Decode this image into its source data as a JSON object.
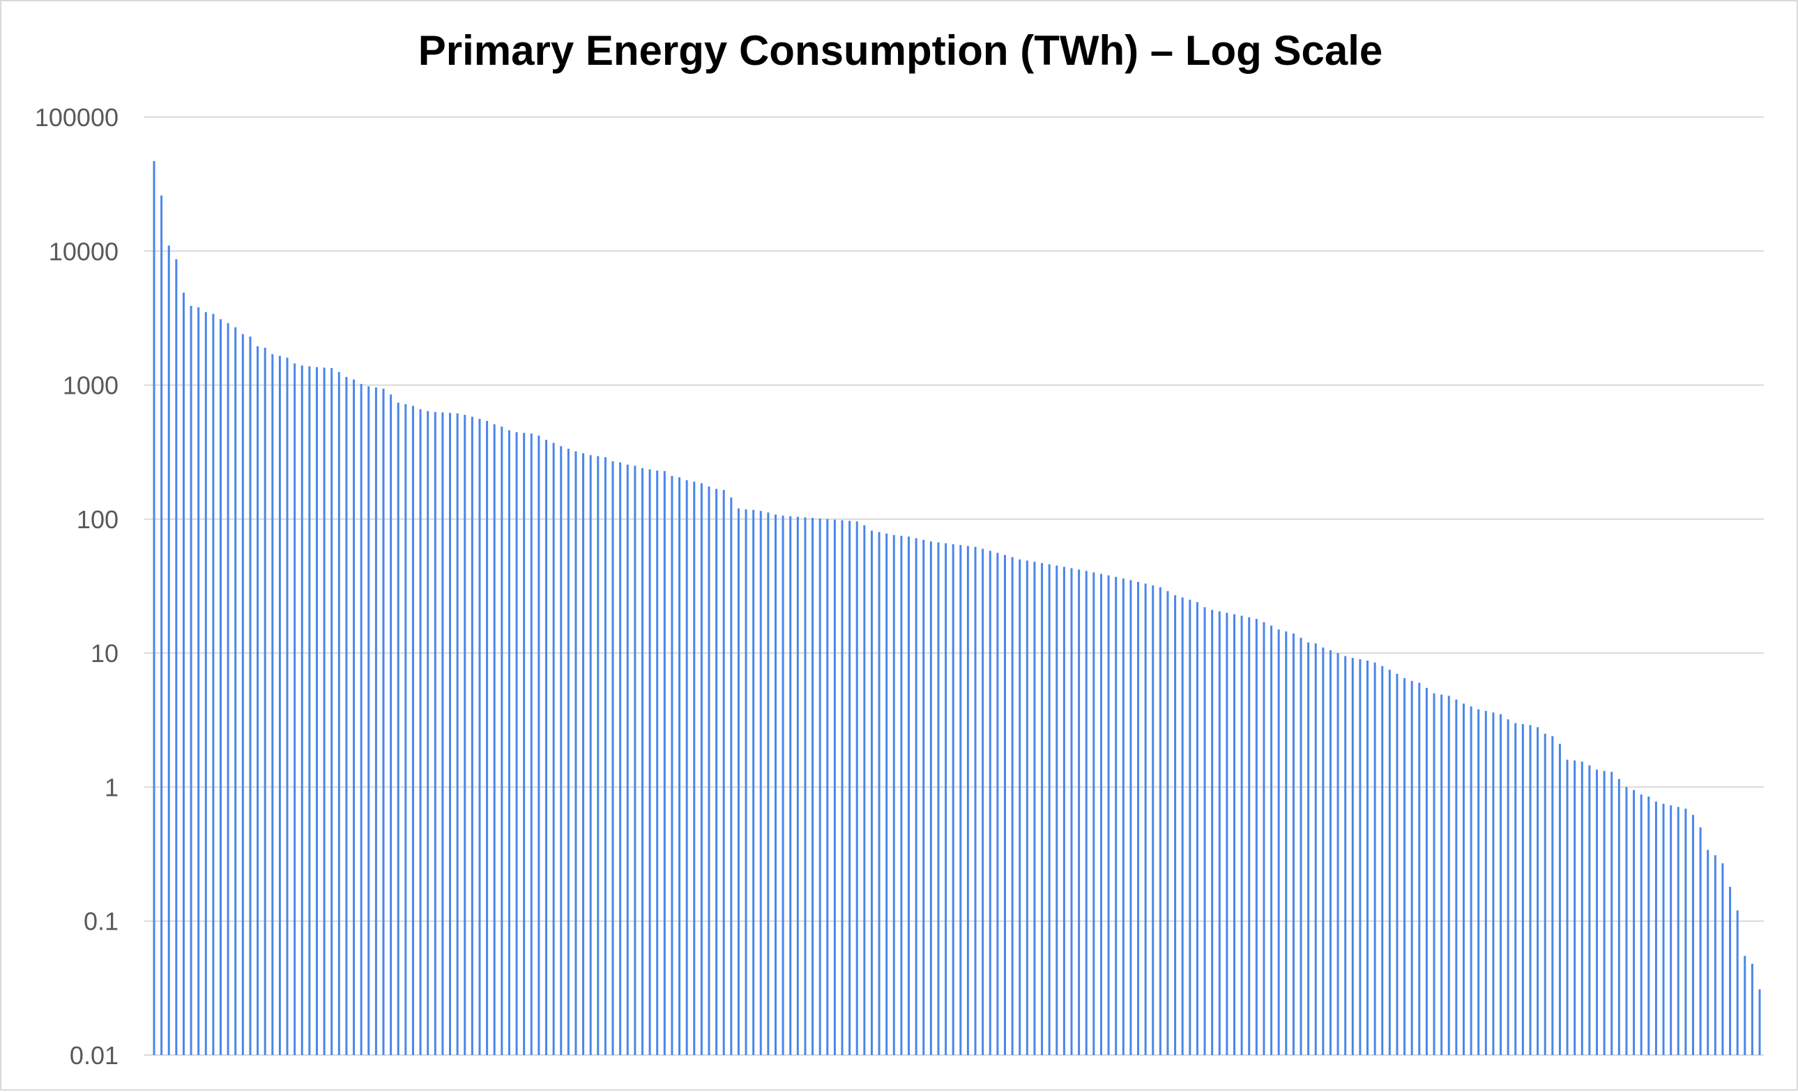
{
  "chart_data": {
    "type": "bar",
    "title": "Primary Energy Consumption (TWh) – Log Scale",
    "xlabel": "",
    "ylabel": "",
    "yscale": "log",
    "ylim": [
      0.01,
      100000
    ],
    "yticks": [
      "100000",
      "10000",
      "1000",
      "100",
      "10",
      "1",
      "0.1",
      "0.01"
    ],
    "grid": true,
    "legend": "none",
    "bar_color": "#4a86e8",
    "grid_color": "#d9d9d9",
    "values": [
      47000,
      26000,
      11000,
      8700,
      4900,
      3900,
      3800,
      3500,
      3400,
      3100,
      2900,
      2700,
      2400,
      2300,
      1950,
      1900,
      1700,
      1650,
      1600,
      1450,
      1400,
      1380,
      1360,
      1350,
      1340,
      1250,
      1150,
      1100,
      1020,
      980,
      960,
      940,
      850,
      740,
      720,
      700,
      660,
      640,
      630,
      625,
      620,
      615,
      600,
      580,
      560,
      540,
      510,
      490,
      460,
      445,
      440,
      435,
      420,
      390,
      370,
      350,
      335,
      320,
      310,
      300,
      295,
      290,
      270,
      265,
      255,
      250,
      240,
      235,
      230,
      228,
      210,
      205,
      195,
      190,
      185,
      175,
      168,
      165,
      145,
      120,
      118,
      117,
      115,
      112,
      108,
      106,
      105,
      104,
      103,
      102,
      101,
      100,
      99,
      98,
      97,
      96,
      90,
      82,
      80,
      78,
      76,
      75,
      74,
      72,
      70,
      68,
      67,
      66,
      65,
      64,
      63,
      62,
      60,
      58,
      56,
      54,
      52,
      50,
      49,
      48,
      47,
      46,
      45,
      44,
      43,
      42,
      41,
      40,
      39,
      38,
      37,
      36,
      35,
      34,
      33,
      32,
      31,
      29,
      27,
      26,
      25,
      24,
      22,
      21,
      20.5,
      20,
      19.5,
      19,
      18.5,
      18,
      17,
      16,
      15,
      14.5,
      14,
      13,
      12,
      11.8,
      11,
      10.5,
      10,
      9.5,
      9.2,
      9,
      8.8,
      8.5,
      8,
      7.5,
      7,
      6.5,
      6.2,
      6,
      5.5,
      5,
      4.9,
      4.8,
      4.5,
      4.2,
      4,
      3.8,
      3.7,
      3.6,
      3.5,
      3.2,
      3,
      2.95,
      2.9,
      2.8,
      2.5,
      2.4,
      2.1,
      1.6,
      1.58,
      1.55,
      1.45,
      1.35,
      1.32,
      1.3,
      1.15,
      1.0,
      0.95,
      0.88,
      0.85,
      0.78,
      0.75,
      0.73,
      0.71,
      0.69,
      0.62,
      0.5,
      0.34,
      0.31,
      0.27,
      0.18,
      0.12,
      0.055,
      0.048,
      0.031
    ]
  }
}
